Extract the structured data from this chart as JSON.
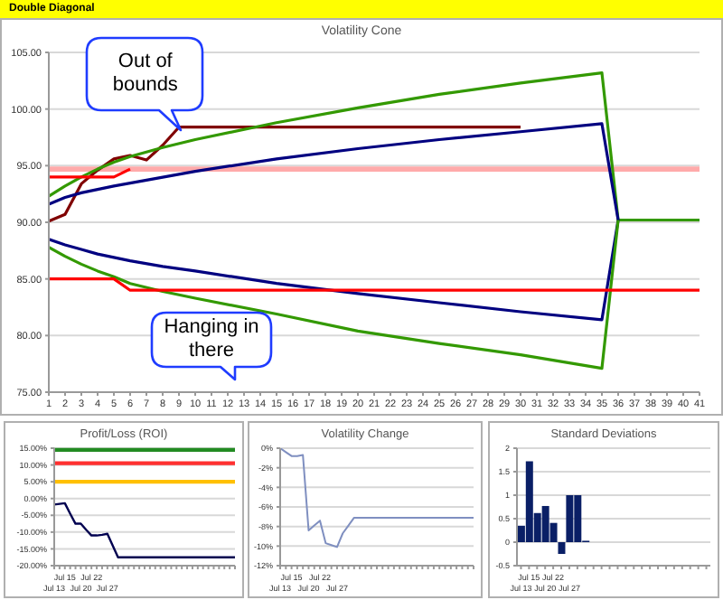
{
  "chart_data": [
    {
      "type": "line",
      "title": "Volatility Cone",
      "annotations": [
        "Double Diagonal",
        {
          "text": "Out of bounds",
          "x": 9,
          "y": 98.4
        }
      ],
      "xlim": [
        1,
        41
      ],
      "xticks": [
        1,
        2,
        3,
        4,
        5,
        6,
        7,
        8,
        9,
        10,
        11,
        12,
        13,
        14,
        15,
        16,
        17,
        18,
        19,
        20,
        21,
        22,
        23,
        24,
        25,
        26,
        27,
        28,
        29,
        30,
        31,
        32,
        33,
        34,
        35,
        36,
        37,
        38,
        39,
        40,
        41
      ],
      "ylim": [
        75,
        105
      ],
      "yticks": [
        {
          "value": 75,
          "label": "75.00"
        },
        {
          "value": 80,
          "label": "80.00"
        },
        {
          "value": 85,
          "label": "85.00"
        },
        {
          "value": 90,
          "label": "90.00"
        },
        {
          "value": 95,
          "label": "95.00"
        },
        {
          "value": 100,
          "label": "100.00"
        },
        {
          "value": 105,
          "label": "105.00"
        }
      ],
      "grid": "y",
      "ref_lines": [
        {
          "axis": "y",
          "value": 94.7,
          "color": "#ffaaaa"
        }
      ],
      "series": [
        {
          "color": "#800000",
          "x": [
            1,
            2,
            3,
            4,
            5,
            6,
            7,
            8,
            9,
            30
          ],
          "values": [
            90.1,
            90.7,
            93.4,
            94.6,
            95.6,
            95.9,
            95.5,
            96.8,
            98.4,
            98.4
          ]
        },
        {
          "color": "#339900",
          "x": [
            1,
            2,
            3,
            4,
            5,
            6,
            8,
            10,
            15,
            20,
            25,
            30,
            35,
            36,
            41
          ],
          "values": [
            92.3,
            93.2,
            94.0,
            94.7,
            95.3,
            95.8,
            96.6,
            97.3,
            98.8,
            100.1,
            101.3,
            102.3,
            103.2,
            90.2,
            90.2
          ]
        },
        {
          "color": "#000080",
          "x": [
            1,
            2,
            3,
            5,
            10,
            15,
            20,
            25,
            30,
            35,
            36,
            35,
            30,
            25,
            20,
            15,
            10,
            8,
            6,
            5,
            4,
            3,
            2,
            1
          ],
          "values": [
            91.6,
            92.2,
            92.6,
            93.2,
            94.5,
            95.6,
            96.5,
            97.3,
            98.0,
            98.7,
            90.2,
            81.4,
            82.1,
            82.9,
            83.7,
            84.6,
            85.7,
            86.1,
            86.6,
            86.9,
            87.2,
            87.6,
            88.0,
            88.5
          ]
        },
        {
          "color": "#339900",
          "x": [
            1,
            2,
            3,
            4,
            5,
            6,
            8,
            10,
            15,
            20,
            25,
            30,
            35,
            36
          ],
          "values": [
            87.8,
            87.0,
            86.3,
            85.7,
            85.2,
            84.6,
            83.9,
            83.3,
            81.9,
            80.4,
            79.3,
            78.3,
            77.1,
            90.2
          ]
        },
        {
          "color": "#ff0000",
          "x": [
            1,
            5,
            6
          ],
          "values": [
            94,
            94,
            94.7
          ]
        },
        {
          "color": "#ff0000",
          "x": [
            1,
            5,
            6,
            41
          ],
          "values": [
            85,
            85,
            84,
            84
          ]
        }
      ]
    },
    {
      "type": "line",
      "title": "Profit/Loss (ROI)",
      "annotations": [
        "Hanging in there"
      ],
      "categories": [
        "Jul 13",
        null,
        "Jul 15",
        null,
        null,
        "Jul 20",
        null,
        "Jul 22",
        null,
        null,
        "Jul 27",
        null,
        null,
        null,
        null,
        null,
        null,
        null,
        null,
        null,
        null,
        null,
        null,
        null,
        null,
        null,
        null,
        null,
        null,
        null,
        null,
        null,
        null,
        null,
        null
      ],
      "ylim": [
        -20,
        15
      ],
      "yticks": [
        {
          "value": -20,
          "label": "-20.00%"
        },
        {
          "value": -15,
          "label": "-15.00%"
        },
        {
          "value": -10,
          "label": "-10.00%"
        },
        {
          "value": -5,
          "label": "-5.00%"
        },
        {
          "value": 0,
          "label": "0.00%"
        },
        {
          "value": 5,
          "label": "5.00%"
        },
        {
          "value": 10,
          "label": "10.00%"
        },
        {
          "value": 15,
          "label": "15.00%"
        }
      ],
      "grid": "y",
      "ref_lines": [
        {
          "axis": "y",
          "value": 14.5,
          "color": "#228b22"
        },
        {
          "axis": "y",
          "value": 10.5,
          "color": "#ff3030"
        },
        {
          "axis": "y",
          "value": 5,
          "color": "#ffc000"
        }
      ],
      "series": [
        {
          "color": "#000050",
          "values": [
            -1.8,
            -1.6,
            -1.4,
            -4.5,
            -7.5,
            -7.5,
            -9.3,
            -11,
            -11,
            -10.8,
            -10.5,
            -14,
            -17.5,
            -17.5,
            -17.5,
            -17.5,
            -17.5,
            -17.5,
            -17.5,
            -17.5,
            -17.5,
            -17.5,
            -17.5,
            -17.5,
            -17.5,
            -17.5,
            -17.5,
            -17.5,
            -17.5,
            -17.5,
            -17.5,
            -17.5,
            -17.5,
            -17.5,
            -17.5
          ]
        }
      ]
    },
    {
      "type": "line",
      "title": "Volatility Change",
      "categories": [
        "Jul 13",
        null,
        "Jul 15",
        null,
        null,
        "Jul 20",
        null,
        "Jul 22",
        null,
        null,
        "Jul 27",
        null,
        null,
        null,
        null,
        null,
        null,
        null,
        null,
        null,
        null,
        null,
        null,
        null,
        null,
        null,
        null,
        null,
        null,
        null,
        null,
        null,
        null,
        null,
        null
      ],
      "ylim": [
        -12,
        0
      ],
      "yticks": [
        {
          "value": -12,
          "label": "-12%"
        },
        {
          "value": -10,
          "label": "-10%"
        },
        {
          "value": -8,
          "label": "-8%"
        },
        {
          "value": -6,
          "label": "-6%"
        },
        {
          "value": -4,
          "label": "-4%"
        },
        {
          "value": -2,
          "label": "-2%"
        },
        {
          "value": 0,
          "label": "0%"
        }
      ],
      "grid": "y",
      "series": [
        {
          "color": "#7f8fc0",
          "values": [
            0,
            -0.4,
            -0.8,
            -0.8,
            -0.7,
            -8.4,
            -7.9,
            -7.4,
            -9.7,
            -9.9,
            -10.1,
            -8.7,
            -7.9,
            -7.1,
            -7.1,
            -7.1,
            -7.1,
            -7.1,
            -7.1,
            -7.1,
            -7.1,
            -7.1,
            -7.1,
            -7.1,
            -7.1,
            -7.1,
            -7.1,
            -7.1,
            -7.1,
            -7.1,
            -7.1,
            -7.1,
            -7.1,
            -7.1,
            -7.1
          ]
        }
      ]
    },
    {
      "type": "bar",
      "title": "Standard Deviations",
      "categories": [
        "Jul 13",
        "Jul 15",
        null,
        "Jul 20",
        "Jul 22",
        null,
        "Jul 27",
        null,
        null,
        null,
        null,
        null,
        null,
        null,
        null,
        null,
        null,
        null,
        null,
        null,
        null,
        null,
        null,
        null
      ],
      "ylim": [
        -0.5,
        2
      ],
      "yticks": [
        -0.5,
        0,
        0.5,
        1,
        1.5,
        2
      ],
      "grid": "y",
      "series": [
        {
          "color": "#0a1f66",
          "values": [
            0.35,
            1.72,
            0.62,
            0.77,
            0.41,
            -0.25,
            1.0,
            1.0,
            0.03,
            null,
            null,
            null,
            null,
            null,
            null,
            null,
            null,
            null,
            null,
            null,
            null,
            null,
            null,
            null
          ]
        }
      ]
    }
  ]
}
